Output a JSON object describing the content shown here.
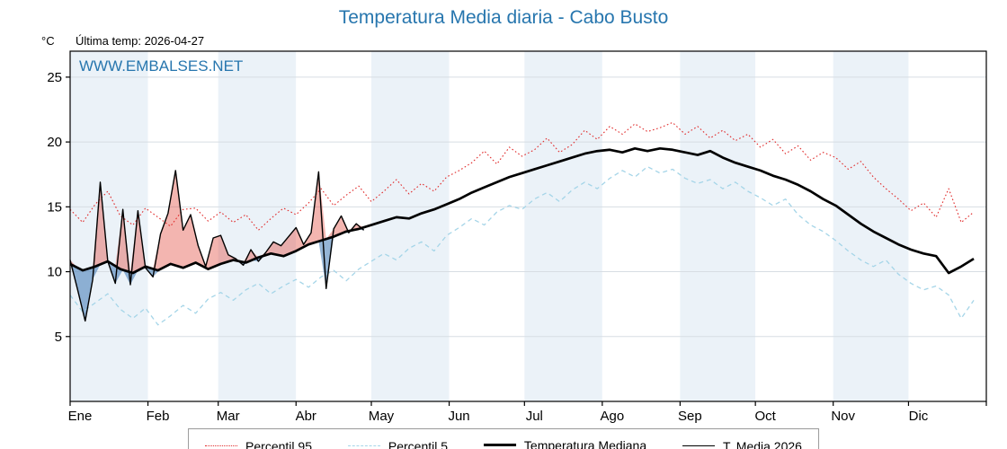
{
  "header": {
    "title": "Temperatura Media diaria - Cabo Busto",
    "y_unit": "°C",
    "last_temp": "Última temp: 2026-04-27",
    "watermark": "WWW.EMBALSES.NET"
  },
  "chart_data": {
    "type": "line",
    "title": "Temperatura Media diaria - Cabo Busto",
    "ylabel": "°C",
    "ylim": [
      0,
      27
    ],
    "yticks": [
      5,
      10,
      15,
      20,
      25
    ],
    "x_tick_labels": [
      "Ene",
      "Feb",
      "Mar",
      "Abr",
      "May",
      "Jun",
      "Jul",
      "Ago",
      "Sep",
      "Oct",
      "Nov",
      "Dic"
    ],
    "month_start_days": [
      0,
      31,
      59,
      90,
      120,
      151,
      181,
      212,
      243,
      273,
      304,
      334,
      365
    ],
    "band_color": "#ebf2f8",
    "grid_color": "#d7dde3",
    "fill_above_color": "rgba(225,70,58,0.40)",
    "fill_below_color": "rgba(62,120,180,0.55)",
    "series": [
      {
        "name": "Percentil 95",
        "style": "dotted",
        "color": "#e02b2b",
        "day_start": 0,
        "day_step": 5,
        "values": [
          14.8,
          13.8,
          15.2,
          16.2,
          14.3,
          13.6,
          14.9,
          14.2,
          13.5,
          14.8,
          14.9,
          13.9,
          14.6,
          13.8,
          14.4,
          13.2,
          14.1,
          14.9,
          14.4,
          15.3,
          16.4,
          15.1,
          15.9,
          16.6,
          15.4,
          16.2,
          17.1,
          16.0,
          16.8,
          16.2,
          17.3,
          17.8,
          18.4,
          19.3,
          18.3,
          19.6,
          18.9,
          19.4,
          20.3,
          19.2,
          19.8,
          20.9,
          20.2,
          21.2,
          20.6,
          21.4,
          20.8,
          21.1,
          21.5,
          20.6,
          21.2,
          20.3,
          20.9,
          20.1,
          20.6,
          19.6,
          20.2,
          19.1,
          19.7,
          18.6,
          19.2,
          18.8,
          17.9,
          18.5,
          17.3,
          16.4,
          15.6,
          14.7,
          15.3,
          14.2,
          16.4,
          13.8,
          14.6
        ]
      },
      {
        "name": "Percentil 5",
        "style": "dashed",
        "color": "#a5d5e8",
        "day_start": 0,
        "day_step": 5,
        "values": [
          8.2,
          6.9,
          7.6,
          8.3,
          7.1,
          6.4,
          7.2,
          5.9,
          6.6,
          7.4,
          6.8,
          7.9,
          8.4,
          7.8,
          8.6,
          9.1,
          8.3,
          8.9,
          9.4,
          8.8,
          9.6,
          10.1,
          9.3,
          10.2,
          10.8,
          11.4,
          10.9,
          11.8,
          12.3,
          11.6,
          12.8,
          13.4,
          14.1,
          13.6,
          14.6,
          15.1,
          14.8,
          15.6,
          16.1,
          15.4,
          16.3,
          16.9,
          16.4,
          17.2,
          17.8,
          17.3,
          18.1,
          17.6,
          17.9,
          17.2,
          16.8,
          17.1,
          16.4,
          16.9,
          16.2,
          15.7,
          15.1,
          15.6,
          14.4,
          13.6,
          13.1,
          12.4,
          11.6,
          10.9,
          10.4,
          10.9,
          9.8,
          9.1,
          8.6,
          8.9,
          8.2,
          6.4,
          7.8
        ]
      },
      {
        "name": "Temperatura Mediana",
        "style": "solid-thick",
        "color": "#000000",
        "day_start": 0,
        "day_step": 5,
        "values": [
          10.6,
          10.1,
          10.4,
          10.8,
          10.2,
          9.9,
          10.4,
          10.1,
          10.6,
          10.3,
          10.7,
          10.2,
          10.6,
          10.9,
          10.7,
          11.1,
          11.4,
          11.2,
          11.6,
          12.1,
          12.4,
          12.7,
          13.1,
          13.3,
          13.6,
          13.9,
          14.2,
          14.1,
          14.5,
          14.8,
          15.2,
          15.6,
          16.1,
          16.5,
          16.9,
          17.3,
          17.6,
          17.9,
          18.2,
          18.5,
          18.8,
          19.1,
          19.3,
          19.4,
          19.2,
          19.5,
          19.3,
          19.5,
          19.4,
          19.2,
          19.0,
          19.3,
          18.8,
          18.4,
          18.1,
          17.8,
          17.4,
          17.1,
          16.7,
          16.2,
          15.6,
          15.1,
          14.4,
          13.7,
          13.1,
          12.6,
          12.1,
          11.7,
          11.4,
          11.2,
          9.9,
          10.4,
          11.0
        ]
      },
      {
        "name": "T. Media 2026",
        "style": "solid-thin",
        "color": "#000000",
        "day_start": 0,
        "day_step": 3,
        "values": [
          10.9,
          8.6,
          6.2,
          9.4,
          16.9,
          10.8,
          9.1,
          14.8,
          9.0,
          14.7,
          10.3,
          9.6,
          12.9,
          14.5,
          17.8,
          13.2,
          14.4,
          12.0,
          10.4,
          12.6,
          12.8,
          11.3,
          11.0,
          10.5,
          11.7,
          10.8,
          11.5,
          12.3,
          12.0,
          12.7,
          13.4,
          12.1,
          13.0,
          17.7,
          8.7,
          13.3,
          14.3,
          13.0,
          13.7,
          13.2
        ]
      }
    ]
  }
}
